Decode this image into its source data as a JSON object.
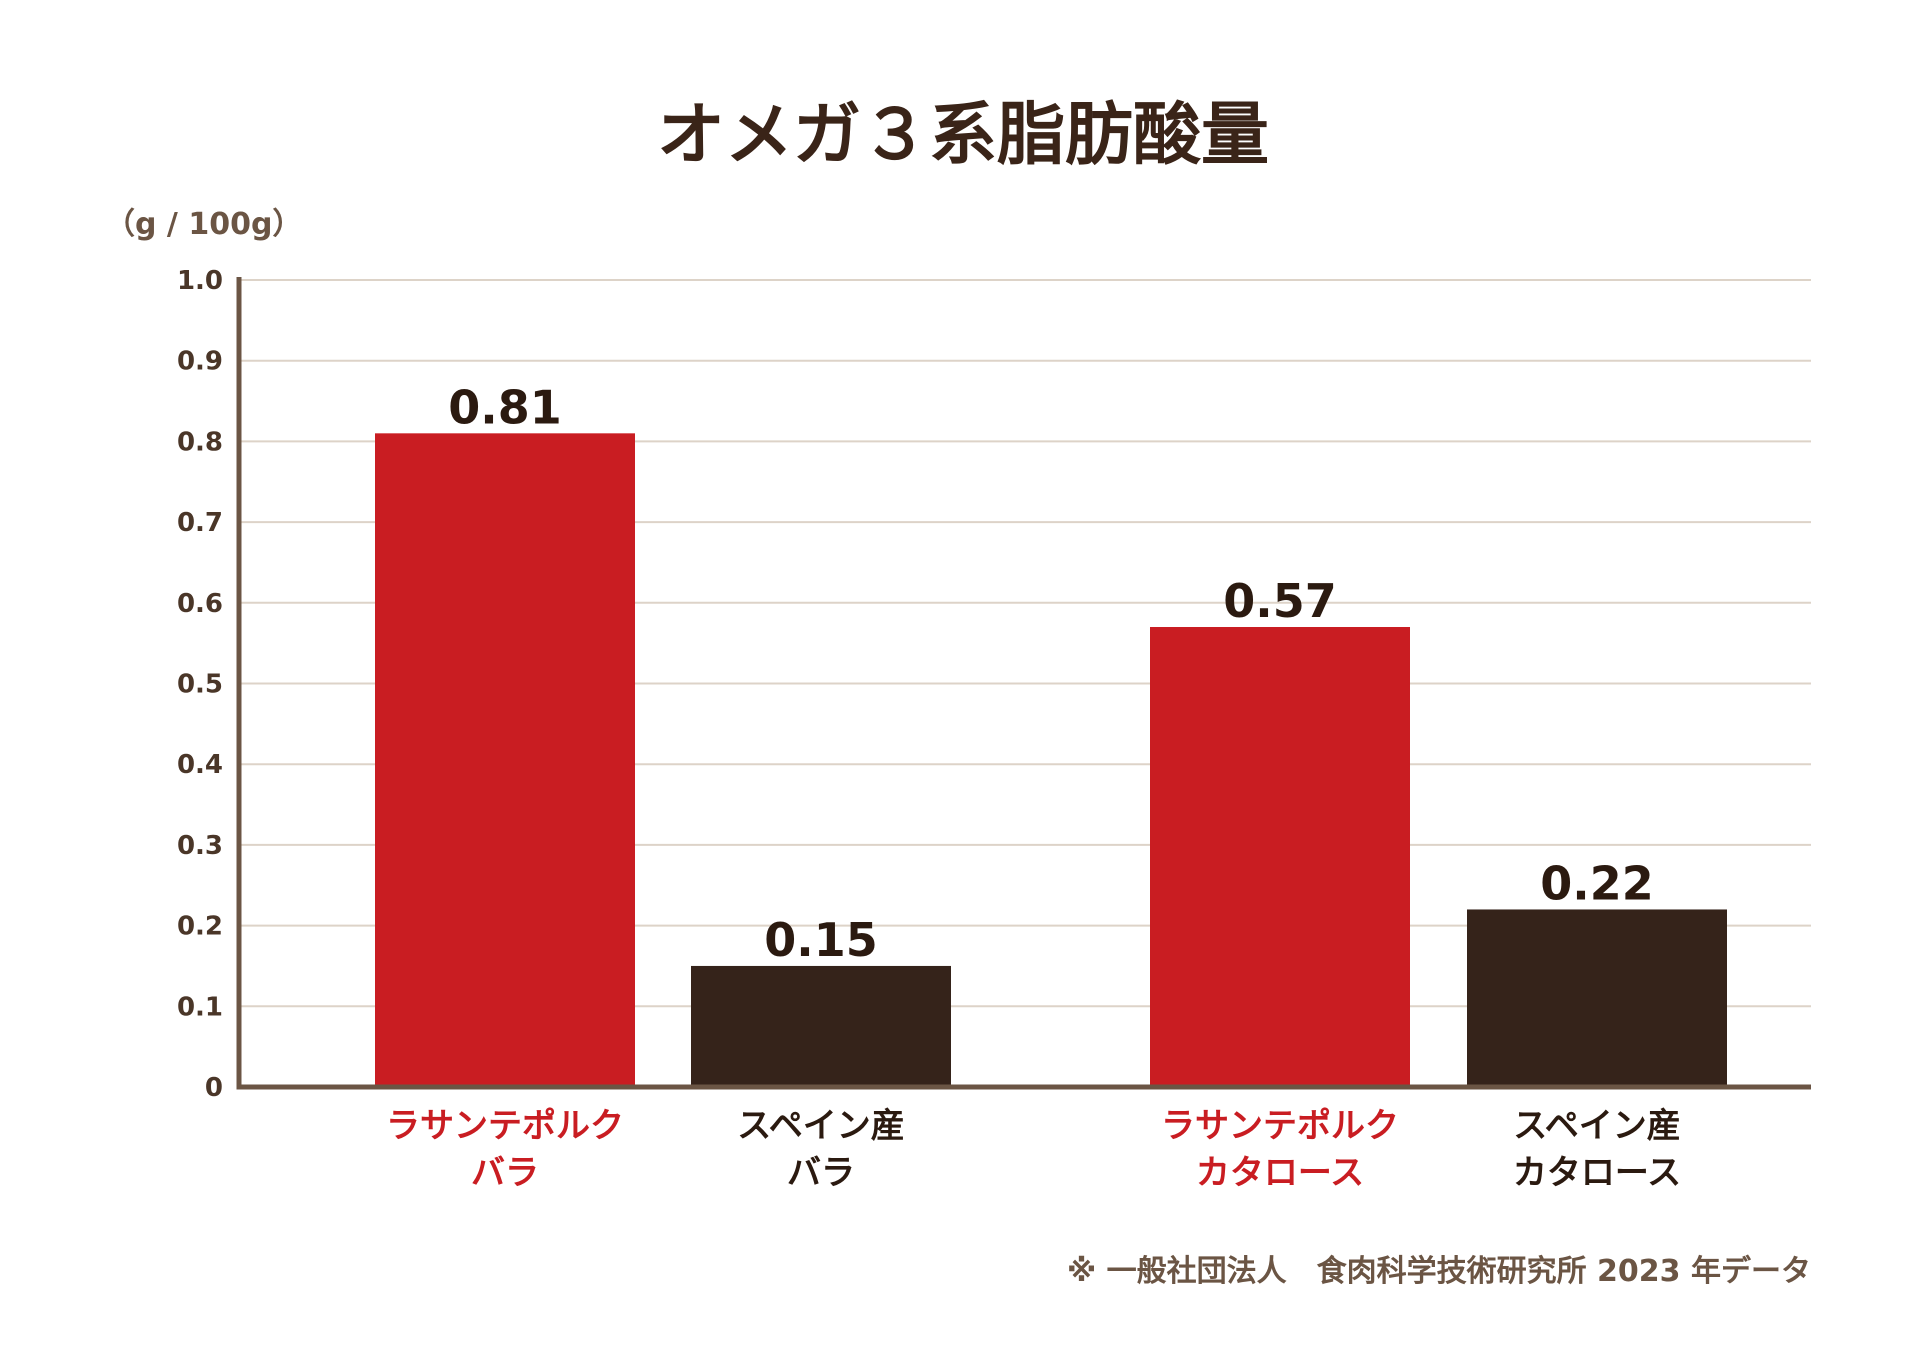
{
  "chart_data": {
    "type": "bar",
    "title": "オメガ３系脂肪酸量",
    "ylabel": "（g / 100g）",
    "ylim": [
      0,
      1.0
    ],
    "yticks": [
      "0",
      "0.1",
      "0.2",
      "0.3",
      "0.4",
      "0.5",
      "0.6",
      "0.7",
      "0.8",
      "0.9",
      "1.0"
    ],
    "grid": true,
    "categories": [
      {
        "lines": [
          "ラサンテポルク",
          "バラ"
        ],
        "value": 0.81,
        "label": "0.81",
        "color": "#c91d22",
        "label_color": "#c91d22"
      },
      {
        "lines": [
          "スペイン産",
          "バラ"
        ],
        "value": 0.15,
        "label": "0.15",
        "color": "#35231a",
        "label_color": "#2b1a10"
      },
      {
        "lines": [
          "ラサンテポルク",
          "カタロース"
        ],
        "value": 0.57,
        "label": "0.57",
        "color": "#c91d22",
        "label_color": "#c91d22"
      },
      {
        "lines": [
          "スペイン産",
          "カタロース"
        ],
        "value": 0.22,
        "label": "0.22",
        "color": "#35231a",
        "label_color": "#2b1a10"
      }
    ],
    "note": "※ 一般社団法人　食肉科学技術研究所 2023 年データ"
  }
}
